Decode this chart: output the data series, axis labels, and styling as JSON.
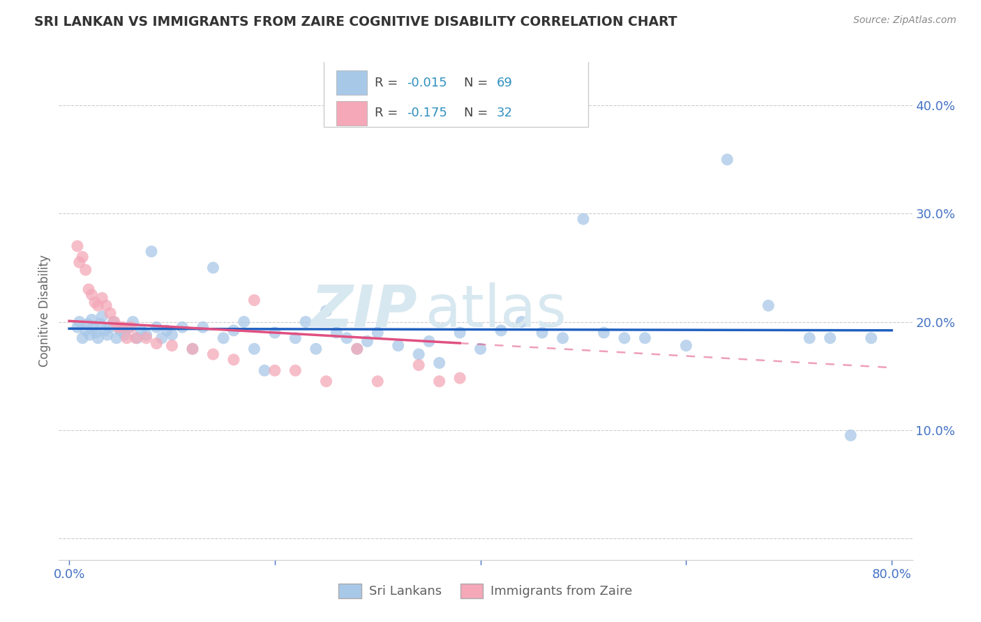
{
  "title": "SRI LANKAN VS IMMIGRANTS FROM ZAIRE COGNITIVE DISABILITY CORRELATION CHART",
  "source": "Source: ZipAtlas.com",
  "ylabel": "Cognitive Disability",
  "blue_color": "#a8c8e8",
  "pink_color": "#f4a8b8",
  "line_blue": "#2060c0",
  "line_pink": "#e05080",
  "legend_label1": "Sri Lankans",
  "legend_label2": "Immigrants from Zaire",
  "r1": "-0.015",
  "n1": "69",
  "r2": "-0.175",
  "n2": "32",
  "text_color_rn": "#3090c0",
  "text_color_label": "#606060",
  "title_color": "#333333",
  "source_color": "#888888",
  "axis_color": "#4472c4",
  "grid_color": "#cccccc"
}
